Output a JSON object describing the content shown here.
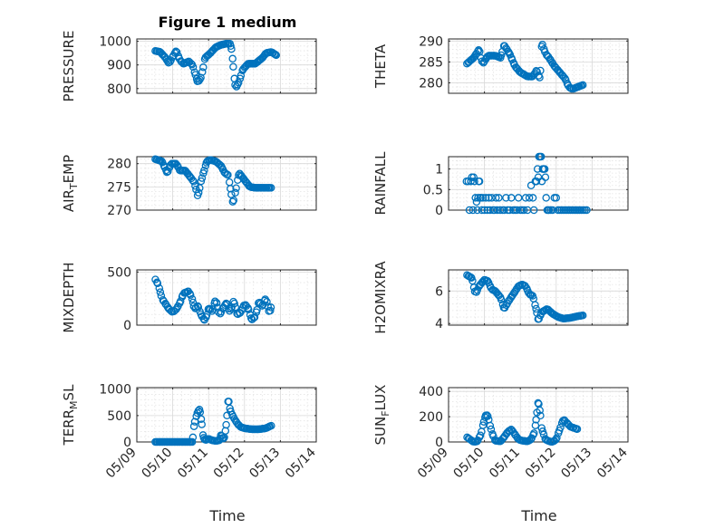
{
  "figure": {
    "title": "Figure 1 medium",
    "xlabel": "Time",
    "marker_color": "#0072BD"
  },
  "chart_data": [
    {
      "type": "scatter",
      "name": "PRESSURE",
      "ylabel": "PRESSURE",
      "ylabel_sub": "",
      "ylim": [
        780,
        1010
      ],
      "yticks": [
        800,
        900,
        1000
      ],
      "xlim": [
        0,
        5
      ],
      "xticklabels": [
        "05/09",
        "05/10",
        "05/11",
        "05/12",
        "05/13",
        "05/14"
      ],
      "grid": true,
      "anchors": [
        [
          0.5,
          960
        ],
        [
          0.65,
          955
        ],
        [
          0.8,
          930
        ],
        [
          0.9,
          905
        ],
        [
          1.0,
          935
        ],
        [
          1.1,
          960
        ],
        [
          1.2,
          920
        ],
        [
          1.3,
          905
        ],
        [
          1.45,
          915
        ],
        [
          1.55,
          900
        ],
        [
          1.62,
          865
        ],
        [
          1.7,
          825
        ],
        [
          1.8,
          850
        ],
        [
          1.9,
          930
        ],
        [
          2.05,
          950
        ],
        [
          2.2,
          975
        ],
        [
          2.35,
          985
        ],
        [
          2.5,
          990
        ],
        [
          2.6,
          990
        ],
        [
          2.65,
          960
        ],
        [
          2.7,
          870
        ],
        [
          2.75,
          800
        ],
        [
          2.85,
          830
        ],
        [
          2.95,
          880
        ],
        [
          3.1,
          905
        ],
        [
          3.3,
          905
        ],
        [
          3.5,
          930
        ],
        [
          3.6,
          950
        ],
        [
          3.75,
          955
        ],
        [
          3.9,
          940
        ]
      ],
      "pattern": [
        0.5,
        0.8,
        0.55,
        0.85,
        0.65,
        0.5,
        0.75
      ]
    },
    {
      "type": "scatter",
      "name": "THETA",
      "ylabel": "THETA",
      "ylabel_sub": "",
      "ylim": [
        277.5,
        290.5
      ],
      "yticks": [
        280,
        285,
        290
      ],
      "xlim": [
        0,
        5
      ],
      "xticklabels": [
        "05/09",
        "05/10",
        "05/11",
        "05/12",
        "05/13",
        "05/14"
      ],
      "grid": true,
      "anchors": [
        [
          0.5,
          284.5
        ],
        [
          0.7,
          286
        ],
        [
          0.85,
          288
        ],
        [
          0.95,
          284.5
        ],
        [
          1.1,
          286.5
        ],
        [
          1.3,
          286.5
        ],
        [
          1.45,
          286
        ],
        [
          1.55,
          289
        ],
        [
          1.7,
          287
        ],
        [
          1.85,
          284
        ],
        [
          2.0,
          282.5
        ],
        [
          2.2,
          281.5
        ],
        [
          2.35,
          281.5
        ],
        [
          2.45,
          283
        ],
        [
          2.55,
          281
        ],
        [
          2.6,
          289.5
        ],
        [
          2.7,
          287
        ],
        [
          2.8,
          286
        ],
        [
          2.95,
          284
        ],
        [
          3.1,
          282.5
        ],
        [
          3.25,
          281
        ],
        [
          3.35,
          279
        ],
        [
          3.45,
          278.5
        ],
        [
          3.6,
          279
        ],
        [
          3.75,
          279.5
        ]
      ],
      "pattern": [
        0.45,
        0.75,
        0.5,
        0.9,
        0.6,
        0.45,
        0.8
      ]
    },
    {
      "type": "scatter",
      "name": "AIR_TEMP",
      "ylabel": "AIR",
      "ylabel_sub": "T",
      "ylabel_rest": "EMP",
      "ylim": [
        270,
        281.5
      ],
      "yticks": [
        270,
        275,
        280
      ],
      "xlim": [
        0,
        5
      ],
      "xticklabels": [
        "05/09",
        "05/10",
        "05/11",
        "05/12",
        "05/13",
        "05/14"
      ],
      "grid": true,
      "anchors": [
        [
          0.5,
          281
        ],
        [
          0.7,
          280.5
        ],
        [
          0.85,
          278
        ],
        [
          0.95,
          280
        ],
        [
          1.1,
          280
        ],
        [
          1.2,
          278.5
        ],
        [
          1.35,
          278.5
        ],
        [
          1.5,
          277
        ],
        [
          1.6,
          276
        ],
        [
          1.7,
          273
        ],
        [
          1.8,
          276.5
        ],
        [
          1.95,
          280.5
        ],
        [
          2.05,
          280.8
        ],
        [
          2.2,
          280.5
        ],
        [
          2.35,
          279.5
        ],
        [
          2.45,
          278
        ],
        [
          2.55,
          277.5
        ],
        [
          2.62,
          274
        ],
        [
          2.68,
          271.5
        ],
        [
          2.75,
          274
        ],
        [
          2.85,
          278
        ],
        [
          3.0,
          276.5
        ],
        [
          3.15,
          275
        ],
        [
          3.3,
          274.8
        ],
        [
          3.5,
          274.8
        ],
        [
          3.75,
          274.8
        ]
      ],
      "pattern": [
        0.5,
        0.8,
        0.55,
        0.85,
        0.65,
        0.5,
        0.75
      ]
    },
    {
      "type": "scatter",
      "name": "RAINFALL",
      "ylabel": "RAINFALL",
      "ylabel_sub": "",
      "ylim": [
        0,
        1.3
      ],
      "yticks": [
        0,
        0.5,
        1
      ],
      "yticklabels": [
        "0",
        "0.5",
        "1"
      ],
      "xlim": [
        0,
        5
      ],
      "xticklabels": [
        "05/09",
        "05/10",
        "05/11",
        "05/12",
        "05/13",
        "05/14"
      ],
      "grid": true,
      "points": [
        [
          0.5,
          0.7
        ],
        [
          0.55,
          0.7
        ],
        [
          0.58,
          0
        ],
        [
          0.62,
          0.7
        ],
        [
          0.65,
          0.8
        ],
        [
          0.68,
          0
        ],
        [
          0.7,
          0.8
        ],
        [
          0.72,
          0.7
        ],
        [
          0.75,
          0.3
        ],
        [
          0.78,
          0.2
        ],
        [
          0.8,
          0
        ],
        [
          0.82,
          0.3
        ],
        [
          0.84,
          0.7
        ],
        [
          0.86,
          0.7
        ],
        [
          0.88,
          0.3
        ],
        [
          0.9,
          0.3
        ],
        [
          0.93,
          0
        ],
        [
          0.96,
          0.3
        ],
        [
          1.0,
          0
        ],
        [
          1.04,
          0.3
        ],
        [
          1.08,
          0
        ],
        [
          1.12,
          0.3
        ],
        [
          1.16,
          0
        ],
        [
          1.2,
          0.3
        ],
        [
          1.24,
          0
        ],
        [
          1.28,
          0
        ],
        [
          1.32,
          0.3
        ],
        [
          1.36,
          0
        ],
        [
          1.4,
          0.3
        ],
        [
          1.44,
          0
        ],
        [
          1.5,
          0
        ],
        [
          1.55,
          0
        ],
        [
          1.6,
          0.3
        ],
        [
          1.65,
          0
        ],
        [
          1.7,
          0
        ],
        [
          1.75,
          0.3
        ],
        [
          1.8,
          0
        ],
        [
          1.85,
          0
        ],
        [
          1.9,
          0
        ],
        [
          1.95,
          0.3
        ],
        [
          2.0,
          0
        ],
        [
          2.05,
          0
        ],
        [
          2.1,
          0
        ],
        [
          2.15,
          0.3
        ],
        [
          2.2,
          0
        ],
        [
          2.25,
          0.3
        ],
        [
          2.3,
          0.6
        ],
        [
          2.35,
          0.3
        ],
        [
          2.38,
          0
        ],
        [
          2.42,
          0.7
        ],
        [
          2.45,
          0.7
        ],
        [
          2.48,
          1.0
        ],
        [
          2.5,
          0.8
        ],
        [
          2.52,
          1.3
        ],
        [
          2.55,
          1.3
        ],
        [
          2.58,
          1.3
        ],
        [
          2.6,
          0.7
        ],
        [
          2.62,
          1.0
        ],
        [
          2.65,
          1.0
        ],
        [
          2.68,
          1.0
        ],
        [
          2.7,
          0.8
        ],
        [
          2.72,
          0.3
        ],
        [
          2.75,
          0
        ],
        [
          2.78,
          0
        ],
        [
          2.8,
          0
        ],
        [
          2.85,
          0
        ],
        [
          2.9,
          0
        ],
        [
          2.95,
          0.3
        ],
        [
          3.0,
          0.3
        ],
        [
          3.05,
          0
        ],
        [
          3.1,
          0
        ],
        [
          3.15,
          0
        ],
        [
          3.2,
          0
        ],
        [
          3.25,
          0
        ],
        [
          3.3,
          0
        ],
        [
          3.35,
          0
        ],
        [
          3.4,
          0
        ],
        [
          3.45,
          0
        ],
        [
          3.5,
          0
        ],
        [
          3.55,
          0
        ],
        [
          3.6,
          0
        ],
        [
          3.65,
          0
        ],
        [
          3.7,
          0
        ],
        [
          3.75,
          0
        ],
        [
          3.8,
          0
        ],
        [
          3.85,
          0
        ]
      ]
    },
    {
      "type": "scatter",
      "name": "MIXDEPTH",
      "ylabel": "MIXDEPTH",
      "ylabel_sub": "",
      "ylim": [
        0,
        520
      ],
      "yticks": [
        0,
        500
      ],
      "xlim": [
        0,
        5
      ],
      "xticklabels": [
        "05/09",
        "05/10",
        "05/11",
        "05/12",
        "05/13",
        "05/14"
      ],
      "grid": true,
      "anchors": [
        [
          0.5,
          440
        ],
        [
          0.6,
          380
        ],
        [
          0.7,
          250
        ],
        [
          0.8,
          200
        ],
        [
          0.9,
          150
        ],
        [
          1.0,
          120
        ],
        [
          1.1,
          150
        ],
        [
          1.2,
          210
        ],
        [
          1.3,
          300
        ],
        [
          1.45,
          320
        ],
        [
          1.55,
          240
        ],
        [
          1.6,
          150
        ],
        [
          1.7,
          180
        ],
        [
          1.8,
          90
        ],
        [
          1.9,
          40
        ],
        [
          2.0,
          160
        ],
        [
          2.1,
          130
        ],
        [
          2.2,
          250
        ],
        [
          2.3,
          90
        ],
        [
          2.4,
          160
        ],
        [
          2.5,
          210
        ],
        [
          2.6,
          120
        ],
        [
          2.7,
          230
        ],
        [
          2.8,
          100
        ],
        [
          2.9,
          120
        ],
        [
          3.0,
          200
        ],
        [
          3.1,
          160
        ],
        [
          3.2,
          50
        ],
        [
          3.3,
          80
        ],
        [
          3.4,
          220
        ],
        [
          3.5,
          180
        ],
        [
          3.6,
          260
        ],
        [
          3.7,
          100
        ],
        [
          3.75,
          190
        ]
      ],
      "pattern": [
        0.5,
        0.9,
        0.35,
        0.75,
        0.6,
        0.4,
        0.8
      ]
    },
    {
      "type": "scatter",
      "name": "H2OMIXRA",
      "ylabel": "H2OMIXRA",
      "ylabel_sub": "",
      "ylim": [
        3.9,
        7.3
      ],
      "yticks": [
        4,
        6
      ],
      "xlim": [
        0,
        5
      ],
      "xticklabels": [
        "05/09",
        "05/10",
        "05/11",
        "05/12",
        "05/13",
        "05/14"
      ],
      "grid": true,
      "anchors": [
        [
          0.5,
          7.0
        ],
        [
          0.65,
          6.8
        ],
        [
          0.75,
          5.8
        ],
        [
          0.85,
          6.3
        ],
        [
          1.0,
          6.7
        ],
        [
          1.1,
          6.6
        ],
        [
          1.2,
          6.1
        ],
        [
          1.3,
          6.0
        ],
        [
          1.45,
          5.6
        ],
        [
          1.55,
          4.9
        ],
        [
          1.65,
          5.3
        ],
        [
          1.8,
          5.8
        ],
        [
          1.95,
          6.3
        ],
        [
          2.05,
          6.4
        ],
        [
          2.15,
          6.3
        ],
        [
          2.25,
          5.8
        ],
        [
          2.35,
          5.7
        ],
        [
          2.45,
          4.8
        ],
        [
          2.5,
          4.2
        ],
        [
          2.6,
          4.7
        ],
        [
          2.75,
          4.9
        ],
        [
          2.9,
          4.6
        ],
        [
          3.05,
          4.4
        ],
        [
          3.2,
          4.3
        ],
        [
          3.4,
          4.35
        ],
        [
          3.6,
          4.45
        ],
        [
          3.75,
          4.5
        ]
      ],
      "pattern": [
        0.5,
        0.8,
        0.55,
        0.85,
        0.65,
        0.5,
        0.75
      ]
    },
    {
      "type": "scatter",
      "name": "TERR_MSL",
      "ylabel": "TERR",
      "ylabel_sub": "M",
      "ylabel_rest": "SL",
      "ylim": [
        0,
        1030
      ],
      "yticks": [
        0,
        500,
        1000
      ],
      "xlim": [
        0,
        5
      ],
      "xticklabels": [
        "05/09",
        "05/10",
        "05/11",
        "05/12",
        "05/13",
        "05/14"
      ],
      "grid": true,
      "anchors": [
        [
          0.5,
          0
        ],
        [
          1.55,
          0
        ],
        [
          1.6,
          350
        ],
        [
          1.7,
          580
        ],
        [
          1.75,
          620
        ],
        [
          1.8,
          400
        ],
        [
          1.85,
          100
        ],
        [
          1.9,
          30
        ],
        [
          2.0,
          60
        ],
        [
          2.1,
          30
        ],
        [
          2.2,
          20
        ],
        [
          2.3,
          30
        ],
        [
          2.35,
          150
        ],
        [
          2.4,
          50
        ],
        [
          2.45,
          100
        ],
        [
          2.5,
          380
        ],
        [
          2.55,
          820
        ],
        [
          2.6,
          600
        ],
        [
          2.7,
          460
        ],
        [
          2.8,
          350
        ],
        [
          2.9,
          280
        ],
        [
          3.0,
          260
        ],
        [
          3.1,
          250
        ],
        [
          3.2,
          240
        ],
        [
          3.4,
          240
        ],
        [
          3.6,
          260
        ],
        [
          3.75,
          310
        ]
      ],
      "pattern": [
        0.5,
        0.7,
        0.45,
        0.8,
        0.6,
        0.55,
        0.75
      ]
    },
    {
      "type": "scatter",
      "name": "SUN_FLUX",
      "ylabel": "SUN",
      "ylabel_sub": "F",
      "ylabel_rest": "LUX",
      "ylim": [
        0,
        430
      ],
      "yticks": [
        0,
        200,
        400
      ],
      "xlim": [
        0,
        5
      ],
      "xticklabels": [
        "05/09",
        "05/10",
        "05/11",
        "05/12",
        "05/13",
        "05/14"
      ],
      "grid": true,
      "anchors": [
        [
          0.5,
          40
        ],
        [
          0.6,
          20
        ],
        [
          0.7,
          0
        ],
        [
          0.8,
          5
        ],
        [
          0.9,
          60
        ],
        [
          1.0,
          180
        ],
        [
          1.05,
          220
        ],
        [
          1.1,
          200
        ],
        [
          1.2,
          80
        ],
        [
          1.3,
          10
        ],
        [
          1.45,
          5
        ],
        [
          1.55,
          40
        ],
        [
          1.65,
          80
        ],
        [
          1.75,
          100
        ],
        [
          1.85,
          60
        ],
        [
          1.95,
          20
        ],
        [
          2.05,
          10
        ],
        [
          2.2,
          5
        ],
        [
          2.3,
          20
        ],
        [
          2.4,
          80
        ],
        [
          2.45,
          200
        ],
        [
          2.5,
          320
        ],
        [
          2.55,
          240
        ],
        [
          2.6,
          100
        ],
        [
          2.7,
          20
        ],
        [
          2.8,
          5
        ],
        [
          2.9,
          0
        ],
        [
          3.0,
          20
        ],
        [
          3.1,
          100
        ],
        [
          3.2,
          180
        ],
        [
          3.3,
          150
        ],
        [
          3.4,
          120
        ],
        [
          3.5,
          110
        ],
        [
          3.6,
          100
        ]
      ],
      "pattern": [
        0.5,
        0.75,
        0.45,
        0.85,
        0.6,
        0.55,
        0.8
      ]
    }
  ]
}
